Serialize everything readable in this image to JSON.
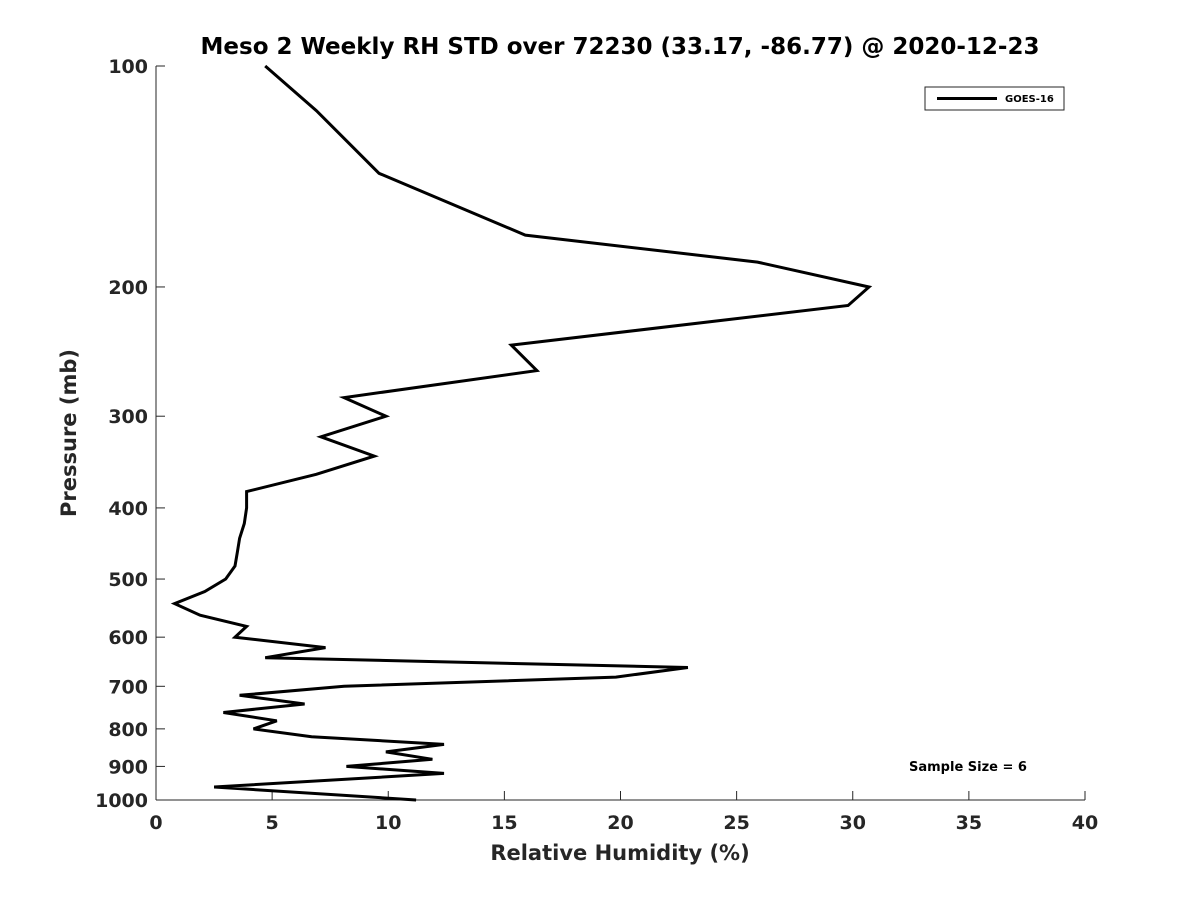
{
  "chart_data": {
    "type": "line",
    "title": "Meso 2 Weekly RH STD over 72230 (33.17, -86.77) @ 2020-12-23",
    "xlabel": "Relative Humidity (%)",
    "ylabel": "Pressure (mb)",
    "xlim": [
      0,
      40
    ],
    "ylim": [
      100,
      1000
    ],
    "yscale": "log",
    "y_reversed": true,
    "x_ticks": [
      0,
      5,
      10,
      15,
      20,
      25,
      30,
      35,
      40
    ],
    "y_ticks": [
      100,
      200,
      300,
      400,
      500,
      600,
      700,
      800,
      900,
      1000
    ],
    "grid": false,
    "legend": {
      "location": "top-right",
      "entries": [
        "GOES-16"
      ]
    },
    "annotation": "Sample Size = 6",
    "series": [
      {
        "name": "GOES-16",
        "color": "#000000",
        "x": [
          4.7,
          6.9,
          9.6,
          15.9,
          25.9,
          30.7,
          29.8,
          15.3,
          16.4,
          8.1,
          9.9,
          7.1,
          9.4,
          6.9,
          3.9,
          3.9,
          3.8,
          3.6,
          3.5,
          3.4,
          3.0,
          2.1,
          0.8,
          1.9,
          3.9,
          3.4,
          7.3,
          4.7,
          22.9,
          19.8,
          8.1,
          3.6,
          6.4,
          2.9,
          5.2,
          4.2,
          6.7,
          12.4,
          9.9,
          11.9,
          8.2,
          12.4,
          2.5,
          11.2
        ],
        "y": [
          100,
          115,
          140,
          170,
          185,
          200,
          212,
          240,
          260,
          283,
          300,
          320,
          340,
          360,
          380,
          400,
          420,
          440,
          460,
          480,
          500,
          520,
          540,
          560,
          580,
          600,
          620,
          640,
          660,
          680,
          700,
          720,
          740,
          760,
          780,
          800,
          820,
          840,
          860,
          880,
          900,
          920,
          960,
          1000
        ]
      }
    ]
  }
}
